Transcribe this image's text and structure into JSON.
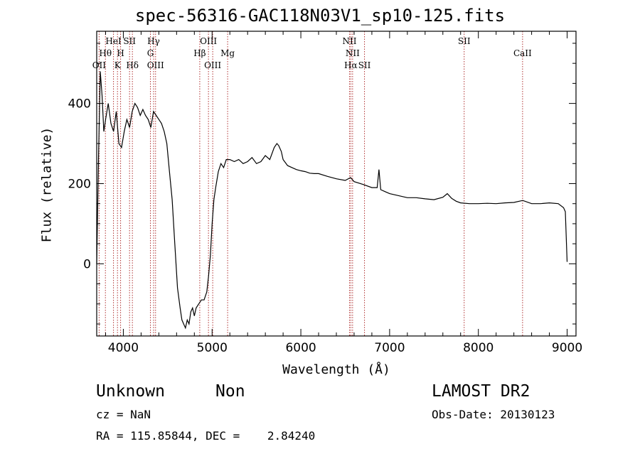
{
  "header": {
    "title": "spec-56316-GAC118N03V1_sp10-125.fits"
  },
  "info": {
    "class": "Unknown",
    "subclass": "Non",
    "survey": "LAMOST DR2",
    "cz": "cz = NaN",
    "obs_date": "Obs-Date: 20130123",
    "radec": "RA = 115.85844, DEC =    2.84240"
  },
  "chart_data": {
    "type": "line",
    "title": "spec-56316-GAC118N03V1_sp10-125.fits",
    "xlabel": "Wavelength (Å)",
    "ylabel": "Flux (relative)",
    "xlim": [
      3700,
      9100
    ],
    "ylim": [
      -180,
      580
    ],
    "xticks": [
      4000,
      5000,
      6000,
      7000,
      8000,
      9000
    ],
    "yticks": [
      0,
      200,
      400
    ],
    "x": [
      3700,
      3720,
      3740,
      3760,
      3780,
      3800,
      3830,
      3860,
      3890,
      3920,
      3950,
      3980,
      4010,
      4040,
      4070,
      4100,
      4130,
      4160,
      4190,
      4220,
      4250,
      4280,
      4310,
      4340,
      4370,
      4400,
      4430,
      4460,
      4490,
      4520,
      4550,
      4580,
      4610,
      4640,
      4660,
      4680,
      4700,
      4720,
      4740,
      4760,
      4780,
      4800,
      4820,
      4850,
      4880,
      4910,
      4940,
      4960,
      4980,
      5000,
      5020,
      5040,
      5070,
      5100,
      5130,
      5160,
      5200,
      5250,
      5300,
      5350,
      5400,
      5450,
      5500,
      5550,
      5600,
      5650,
      5700,
      5730,
      5750,
      5780,
      5800,
      5850,
      5900,
      5950,
      6000,
      6050,
      6100,
      6150,
      6200,
      6300,
      6400,
      6500,
      6560,
      6600,
      6700,
      6800,
      6860,
      6880,
      6900,
      6950,
      7000,
      7100,
      7200,
      7300,
      7400,
      7500,
      7600,
      7650,
      7700,
      7750,
      7800,
      7900,
      8000,
      8100,
      8200,
      8300,
      8400,
      8500,
      8600,
      8700,
      8800,
      8900,
      8960,
      8980,
      9000
    ],
    "values": [
      0,
      260,
      480,
      420,
      330,
      360,
      400,
      350,
      330,
      380,
      300,
      290,
      330,
      360,
      340,
      380,
      400,
      390,
      370,
      385,
      370,
      360,
      340,
      380,
      370,
      360,
      350,
      330,
      300,
      230,
      160,
      50,
      -60,
      -110,
      -140,
      -150,
      -160,
      -140,
      -150,
      -120,
      -110,
      -130,
      -110,
      -100,
      -90,
      -90,
      -70,
      -30,
      20,
      100,
      160,
      190,
      230,
      250,
      240,
      260,
      260,
      255,
      260,
      250,
      255,
      265,
      250,
      255,
      270,
      260,
      290,
      300,
      295,
      280,
      260,
      245,
      240,
      235,
      232,
      230,
      226,
      225,
      225,
      218,
      212,
      208,
      215,
      205,
      198,
      190,
      190,
      235,
      185,
      180,
      175,
      170,
      165,
      165,
      162,
      160,
      166,
      175,
      163,
      156,
      152,
      150,
      150,
      151,
      150,
      152,
      153,
      158,
      150,
      150,
      152,
      150,
      140,
      130,
      5
    ],
    "lines": [
      {
        "name": "OII",
        "x": 3727,
        "row": 3
      },
      {
        "name": "Hθ",
        "x": 3798,
        "row": 2
      },
      {
        "name": "HeI",
        "x": 3889,
        "row": 1
      },
      {
        "name": "K",
        "x": 3934,
        "row": 3
      },
      {
        "name": "H",
        "x": 3969,
        "row": 2
      },
      {
        "name": "SII",
        "x": 4070,
        "row": 1
      },
      {
        "name": "Hδ",
        "x": 4102,
        "row": 3
      },
      {
        "name": "G",
        "x": 4305,
        "row": 2
      },
      {
        "name": "Hγ",
        "x": 4341,
        "row": 1
      },
      {
        "name": "OIII",
        "x": 4363,
        "row": 3
      },
      {
        "name": "Hβ",
        "x": 4861,
        "row": 2
      },
      {
        "name": "OIII",
        "x": 4959,
        "row": 1
      },
      {
        "name": "OIII",
        "x": 5007,
        "row": 3
      },
      {
        "name": "Mg",
        "x": 5175,
        "row": 2
      },
      {
        "name": "NII",
        "x": 6548,
        "row": 1
      },
      {
        "name": "NII",
        "x": 6583,
        "row": 2
      },
      {
        "name": "Hα",
        "x": 6563,
        "row": 3
      },
      {
        "name": "SII",
        "x": 6717,
        "row": 3
      },
      {
        "name": "SII",
        "x": 7840,
        "row": 1
      },
      {
        "name": "CaII",
        "x": 8498,
        "row": 2
      }
    ],
    "line_color": "#000000",
    "marker_color": "#b03030",
    "grid": false
  }
}
